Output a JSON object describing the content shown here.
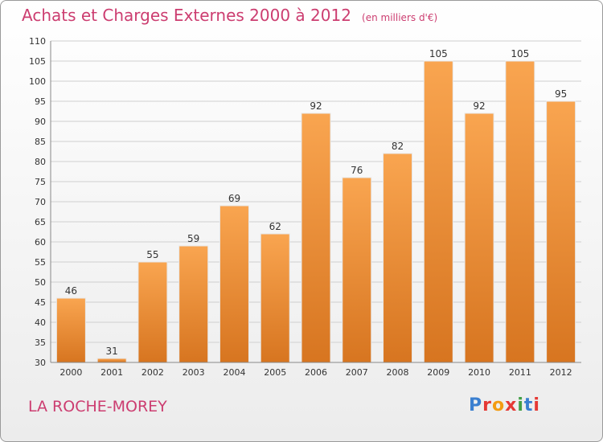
{
  "header": {
    "title": "Achats et Charges Externes 2000 à 2012",
    "unit": "(en milliers d'€)"
  },
  "footer": {
    "commune": "LA ROCHE-MOREY",
    "logo_text": "Proxiti",
    "logo_colors": [
      "#3a7fd0",
      "#e53935",
      "#f39c12",
      "#e53935",
      "#43a047",
      "#3a7fd0",
      "#e53935"
    ]
  },
  "chart_data": {
    "type": "bar",
    "title": "Achats et Charges Externes 2000 à 2012",
    "xlabel": "",
    "ylabel": "",
    "categories": [
      "2000",
      "2001",
      "2002",
      "2003",
      "2004",
      "2005",
      "2006",
      "2007",
      "2008",
      "2009",
      "2010",
      "2011",
      "2012"
    ],
    "values": [
      46,
      31,
      55,
      59,
      69,
      62,
      92,
      76,
      82,
      105,
      92,
      105,
      95
    ],
    "ylim": [
      30,
      110
    ],
    "yticks": [
      30,
      35,
      40,
      45,
      50,
      55,
      60,
      65,
      70,
      75,
      80,
      85,
      90,
      95,
      100,
      105,
      110
    ],
    "grid": true,
    "colors": {
      "bar_top": "#f9a550",
      "bar_bottom": "#d77520",
      "grid": "#cfcfcf",
      "text": "#333333"
    }
  }
}
